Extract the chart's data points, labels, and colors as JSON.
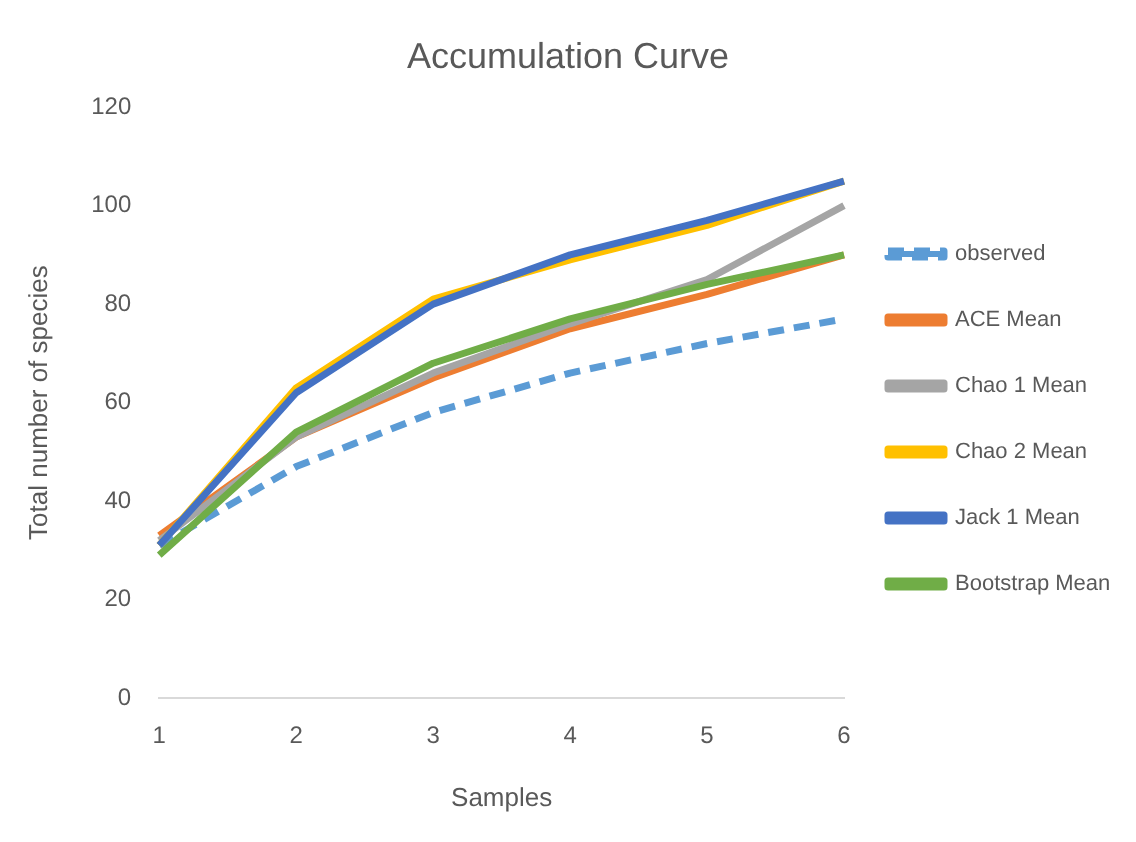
{
  "chart_data": {
    "type": "line",
    "title": "Accumulation Curve",
    "xlabel": "Samples",
    "ylabel": "Total number of species",
    "categories": [
      "1",
      "2",
      "3",
      "4",
      "5",
      "6"
    ],
    "ylim": [
      0,
      120
    ],
    "yticks": [
      0,
      20,
      40,
      60,
      80,
      100,
      120
    ],
    "grid": false,
    "legend": "right",
    "marker": "none",
    "series": [
      {
        "name": "observed",
        "color": "#5b9bd5",
        "line_style": "dashed",
        "values": [
          31,
          47,
          58,
          66,
          72,
          77
        ]
      },
      {
        "name": "ACE Mean",
        "color": "#ed7d31",
        "values": [
          33,
          53,
          65,
          75,
          82,
          90
        ]
      },
      {
        "name": "Chao 1 Mean",
        "color": "#a5a5a5",
        "values": [
          32,
          53,
          66,
          76,
          85,
          100
        ]
      },
      {
        "name": "Chao 2 Mean",
        "color": "#ffc000",
        "values": [
          31,
          63,
          81,
          89,
          96,
          105
        ]
      },
      {
        "name": "Jack 1 Mean",
        "color": "#4472c4",
        "values": [
          31,
          62,
          80,
          90,
          97,
          105
        ]
      },
      {
        "name": "Bootstrap Mean",
        "color": "#70ad47",
        "values": [
          29,
          54,
          68,
          77,
          84,
          90
        ]
      }
    ]
  }
}
